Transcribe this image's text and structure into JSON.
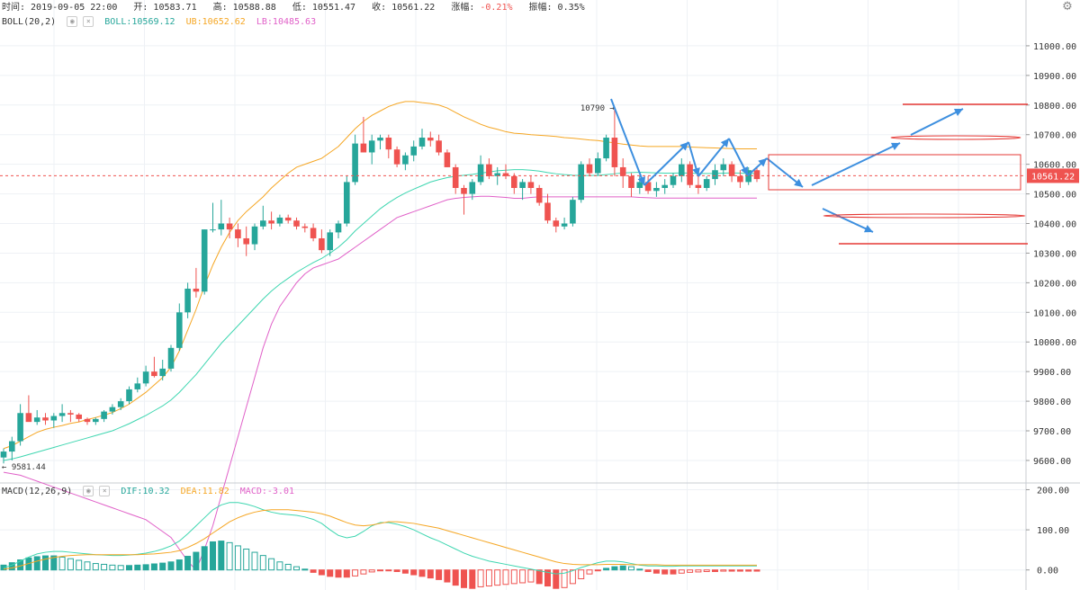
{
  "header": {
    "time_label": "时间:",
    "time": "2019-09-05 22:00",
    "open_label": "开:",
    "open": "10583.71",
    "high_label": "高:",
    "high": "10588.88",
    "low_label": "低:",
    "low": "10551.47",
    "close_label": "收:",
    "close": "10561.22",
    "change_label": "涨幅:",
    "change": "-0.21%",
    "amp_label": "振幅:",
    "amp": "0.35%"
  },
  "boll_legend": {
    "name": "BOLL(20,2)",
    "mid": "BOLL:10569.12",
    "ub": "UB:10652.62",
    "lb": "LB:10485.63"
  },
  "macd_legend": {
    "name": "MACD(12,26,9)",
    "dif": "DIF:10.32",
    "dea": "DEA:11.82",
    "macd": "MACD:-3.01"
  },
  "icons": {
    "settings": "gear-icon",
    "legend_eye": "eye-icon",
    "legend_close": "close-icon"
  },
  "colors": {
    "up": "#26a69a",
    "down": "#ef5350",
    "mid": "#3ed6b0",
    "ub": "#f5a623",
    "lb": "#e060c8",
    "dea": "#f5a623",
    "dif": "#3ed6b0",
    "annotation_arrow": "#3d8fdf",
    "annotation_line": "#e53935"
  },
  "chart_data": [
    {
      "type": "candlestick",
      "title": "",
      "ylim": [
        9530,
        11100
      ],
      "yticks": [
        9600,
        9700,
        9800,
        9900,
        10000,
        10100,
        10200,
        10300,
        10400,
        10500,
        10600,
        10700,
        10800,
        10900,
        11000
      ],
      "ytick_labels": [
        "9600.00",
        "9700.00",
        "9800.00",
        "9900.00",
        "10000.00",
        "10100.00",
        "10200.00",
        "10300.00",
        "10400.00",
        "10500.00",
        "10600.00",
        "10700.00",
        "10800.00",
        "10900.00",
        "11000.00"
      ],
      "current_price": 10561.22,
      "current_price_label": "10561.22",
      "marker_high": {
        "label": "10790",
        "value": 10790
      },
      "marker_low": {
        "label": "9581.44",
        "value": 9581.44
      },
      "candles": [
        [
          9610,
          9640,
          9590,
          9630
        ],
        [
          9630,
          9680,
          9600,
          9665
        ],
        [
          9665,
          9790,
          9650,
          9760
        ],
        [
          9760,
          9820,
          9740,
          9730
        ],
        [
          9730,
          9770,
          9720,
          9745
        ],
        [
          9745,
          9760,
          9720,
          9735
        ],
        [
          9735,
          9760,
          9710,
          9750
        ],
        [
          9750,
          9790,
          9730,
          9760
        ],
        [
          9760,
          9770,
          9730,
          9755
        ],
        [
          9755,
          9760,
          9730,
          9740
        ],
        [
          9740,
          9745,
          9720,
          9730
        ],
        [
          9730,
          9745,
          9720,
          9740
        ],
        [
          9740,
          9770,
          9730,
          9765
        ],
        [
          9765,
          9790,
          9755,
          9780
        ],
        [
          9780,
          9810,
          9770,
          9800
        ],
        [
          9800,
          9850,
          9790,
          9840
        ],
        [
          9840,
          9880,
          9830,
          9860
        ],
        [
          9860,
          9920,
          9850,
          9900
        ],
        [
          9900,
          9950,
          9880,
          9885
        ],
        [
          9885,
          9940,
          9870,
          9910
        ],
        [
          9910,
          9990,
          9900,
          9980
        ],
        [
          9980,
          10130,
          9970,
          10100
        ],
        [
          10100,
          10200,
          10080,
          10180
        ],
        [
          10180,
          10250,
          10150,
          10170
        ],
        [
          10170,
          10380,
          10160,
          10380
        ],
        [
          10380,
          10470,
          10370,
          10380
        ],
        [
          10380,
          10480,
          10360,
          10400
        ],
        [
          10400,
          10420,
          10350,
          10380
        ],
        [
          10380,
          10400,
          10320,
          10350
        ],
        [
          10350,
          10390,
          10290,
          10330
        ],
        [
          10330,
          10400,
          10310,
          10390
        ],
        [
          10390,
          10460,
          10380,
          10410
        ],
        [
          10410,
          10440,
          10380,
          10400
        ],
        [
          10400,
          10430,
          10390,
          10420
        ],
        [
          10420,
          10430,
          10400,
          10410
        ],
        [
          10410,
          10420,
          10380,
          10390
        ],
        [
          10390,
          10400,
          10370,
          10385
        ],
        [
          10385,
          10400,
          10340,
          10350
        ],
        [
          10350,
          10380,
          10300,
          10310
        ],
        [
          10310,
          10380,
          10290,
          10370
        ],
        [
          10370,
          10410,
          10350,
          10400
        ],
        [
          10400,
          10560,
          10390,
          10540
        ],
        [
          10540,
          10700,
          10530,
          10670
        ],
        [
          10670,
          10760,
          10640,
          10640
        ],
        [
          10640,
          10700,
          10600,
          10680
        ],
        [
          10680,
          10700,
          10650,
          10690
        ],
        [
          10690,
          10700,
          10620,
          10650
        ],
        [
          10650,
          10660,
          10590,
          10600
        ],
        [
          10600,
          10640,
          10580,
          10630
        ],
        [
          10630,
          10680,
          10610,
          10660
        ],
        [
          10660,
          10720,
          10650,
          10690
        ],
        [
          10690,
          10710,
          10660,
          10680
        ],
        [
          10680,
          10700,
          10630,
          10640
        ],
        [
          10640,
          10650,
          10590,
          10590
        ],
        [
          10590,
          10600,
          10500,
          10520
        ],
        [
          10520,
          10530,
          10430,
          10500
        ],
        [
          10500,
          10550,
          10480,
          10540
        ],
        [
          10540,
          10630,
          10530,
          10600
        ],
        [
          10600,
          10620,
          10550,
          10560
        ],
        [
          10560,
          10590,
          10530,
          10570
        ],
        [
          10570,
          10600,
          10550,
          10560
        ],
        [
          10560,
          10570,
          10500,
          10520
        ],
        [
          10520,
          10550,
          10480,
          10540
        ],
        [
          10540,
          10560,
          10500,
          10520
        ],
        [
          10520,
          10530,
          10460,
          10470
        ],
        [
          10470,
          10500,
          10400,
          10410
        ],
        [
          10410,
          10420,
          10370,
          10390
        ],
        [
          10390,
          10420,
          10380,
          10400
        ],
        [
          10400,
          10490,
          10390,
          10480
        ],
        [
          10480,
          10610,
          10470,
          10600
        ],
        [
          10600,
          10620,
          10560,
          10570
        ],
        [
          10570,
          10640,
          10560,
          10620
        ],
        [
          10620,
          10700,
          10610,
          10690
        ],
        [
          10690,
          10790,
          10560,
          10590
        ],
        [
          10590,
          10620,
          10520,
          10560
        ],
        [
          10560,
          10570,
          10490,
          10520
        ],
        [
          10520,
          10560,
          10500,
          10540
        ],
        [
          10540,
          10560,
          10500,
          10510
        ],
        [
          10510,
          10540,
          10490,
          10520
        ],
        [
          10520,
          10550,
          10500,
          10530
        ],
        [
          10530,
          10570,
          10520,
          10560
        ],
        [
          10560,
          10620,
          10540,
          10600
        ],
        [
          10600,
          10610,
          10520,
          10530
        ],
        [
          10530,
          10560,
          10500,
          10520
        ],
        [
          10520,
          10560,
          10510,
          10550
        ],
        [
          10550,
          10600,
          10530,
          10580
        ],
        [
          10580,
          10620,
          10560,
          10600
        ],
        [
          10600,
          10610,
          10540,
          10560
        ],
        [
          10560,
          10580,
          10520,
          10540
        ],
        [
          10540,
          10590,
          10530,
          10580
        ],
        [
          10580,
          10590,
          10540,
          10550
        ]
      ],
      "boll_mid": [
        9600,
        9605,
        9612,
        9620,
        9628,
        9636,
        9644,
        9652,
        9660,
        9668,
        9676,
        9684,
        9692,
        9700,
        9712,
        9724,
        9738,
        9752,
        9768,
        9784,
        9804,
        9830,
        9860,
        9890,
        9925,
        9960,
        9995,
        10025,
        10055,
        10085,
        10115,
        10145,
        10172,
        10195,
        10215,
        10235,
        10252,
        10268,
        10282,
        10300,
        10320,
        10345,
        10375,
        10400,
        10425,
        10450,
        10470,
        10488,
        10503,
        10516,
        10528,
        10540,
        10548,
        10555,
        10560,
        10563,
        10566,
        10570,
        10574,
        10578,
        10580,
        10582,
        10582,
        10580,
        10577,
        10572,
        10568,
        10565,
        10563,
        10562,
        10562,
        10563,
        10565,
        10568,
        10571,
        10572,
        10573,
        10572,
        10571,
        10570,
        10570,
        10571,
        10570,
        10569,
        10569,
        10569,
        10570,
        10571,
        10570,
        10569,
        10569
      ],
      "boll_ub": [
        9640,
        9650,
        9665,
        9680,
        9695,
        9705,
        9712,
        9718,
        9725,
        9730,
        9738,
        9745,
        9753,
        9762,
        9775,
        9790,
        9810,
        9830,
        9855,
        9880,
        9915,
        9970,
        10040,
        10110,
        10190,
        10260,
        10320,
        10370,
        10410,
        10440,
        10465,
        10490,
        10520,
        10545,
        10570,
        10590,
        10600,
        10610,
        10620,
        10640,
        10660,
        10690,
        10720,
        10745,
        10765,
        10780,
        10795,
        10805,
        10812,
        10812,
        10808,
        10805,
        10800,
        10790,
        10775,
        10760,
        10748,
        10735,
        10725,
        10718,
        10710,
        10705,
        10703,
        10700,
        10698,
        10696,
        10694,
        10690,
        10688,
        10685,
        10682,
        10680,
        10676,
        10672,
        10668,
        10665,
        10662,
        10660,
        10660,
        10660,
        10660,
        10660,
        10658,
        10657,
        10656,
        10655,
        10654,
        10653,
        10652,
        10652,
        10652
      ],
      "boll_lb": [
        9560,
        9555,
        9550,
        9540,
        9530,
        9520,
        9510,
        9500,
        9490,
        9480,
        9470,
        9460,
        9450,
        9440,
        9430,
        9420,
        9410,
        9400,
        9380,
        9360,
        9340,
        9300,
        9260,
        9230,
        9300,
        9380,
        9480,
        9580,
        9680,
        9780,
        9880,
        9980,
        10060,
        10120,
        10160,
        10200,
        10230,
        10250,
        10260,
        10270,
        10280,
        10300,
        10320,
        10340,
        10360,
        10380,
        10400,
        10420,
        10430,
        10440,
        10450,
        10460,
        10470,
        10480,
        10485,
        10488,
        10490,
        10492,
        10492,
        10490,
        10488,
        10485,
        10485,
        10488,
        10490,
        10490,
        10490,
        10490,
        10490,
        10490,
        10490,
        10490,
        10490,
        10490,
        10490,
        10490,
        10488,
        10487,
        10486,
        10486,
        10486,
        10486,
        10486,
        10486,
        10486,
        10486,
        10486,
        10486,
        10486,
        10486,
        10486
      ]
    },
    {
      "type": "bar+line",
      "title": "",
      "ylim": [
        -50,
        210
      ],
      "yticks": [
        0,
        100,
        200
      ],
      "ytick_labels": [
        "0.00",
        "100.00",
        "200.00"
      ],
      "macd_hist": [
        12,
        18,
        25,
        30,
        33,
        35,
        35,
        32,
        28,
        24,
        20,
        16,
        14,
        12,
        11,
        11,
        12,
        13,
        15,
        17,
        20,
        25,
        34,
        44,
        58,
        70,
        72,
        68,
        60,
        52,
        44,
        36,
        28,
        20,
        14,
        8,
        2,
        -6,
        -12,
        -16,
        -18,
        -18,
        -15,
        -10,
        -5,
        -2,
        -1,
        -4,
        -8,
        -12,
        -16,
        -20,
        -24,
        -30,
        -38,
        -44,
        -46,
        -42,
        -40,
        -38,
        -36,
        -34,
        -32,
        -30,
        -34,
        -40,
        -46,
        -44,
        -34,
        -22,
        -10,
        -2,
        4,
        8,
        10,
        8,
        2,
        -4,
        -8,
        -10,
        -10,
        -8,
        -6,
        -5,
        -4,
        -4,
        -3,
        -3,
        -3,
        -3,
        -3
      ],
      "dif": [
        5,
        12,
        22,
        32,
        40,
        44,
        46,
        46,
        44,
        42,
        40,
        38,
        37,
        36,
        36,
        37,
        39,
        42,
        46,
        52,
        60,
        72,
        90,
        110,
        130,
        150,
        162,
        168,
        168,
        164,
        158,
        150,
        144,
        140,
        138,
        136,
        132,
        126,
        116,
        100,
        86,
        80,
        84,
        96,
        110,
        118,
        118,
        114,
        108,
        100,
        90,
        80,
        72,
        62,
        52,
        42,
        34,
        28,
        22,
        18,
        14,
        10,
        6,
        2,
        -2,
        -6,
        -10,
        -8,
        -2,
        6,
        12,
        18,
        22,
        22,
        20,
        16,
        12,
        10,
        10,
        9,
        9,
        10,
        10,
        10,
        10,
        10,
        10,
        10,
        10,
        10,
        10
      ],
      "dea": [
        2,
        5,
        10,
        16,
        22,
        27,
        31,
        34,
        36,
        37,
        38,
        38,
        38,
        38,
        38,
        38,
        38,
        39,
        40,
        42,
        44,
        48,
        56,
        66,
        78,
        92,
        106,
        120,
        130,
        138,
        144,
        148,
        150,
        150,
        150,
        148,
        146,
        144,
        140,
        134,
        126,
        118,
        112,
        110,
        112,
        116,
        120,
        120,
        118,
        116,
        112,
        108,
        104,
        98,
        92,
        86,
        80,
        74,
        68,
        62,
        56,
        50,
        44,
        38,
        32,
        26,
        20,
        16,
        14,
        13,
        13,
        13,
        14,
        14,
        14,
        13,
        13,
        13,
        13,
        12,
        12,
        12,
        12,
        12,
        12,
        12,
        12,
        12,
        12,
        12,
        12
      ]
    }
  ]
}
